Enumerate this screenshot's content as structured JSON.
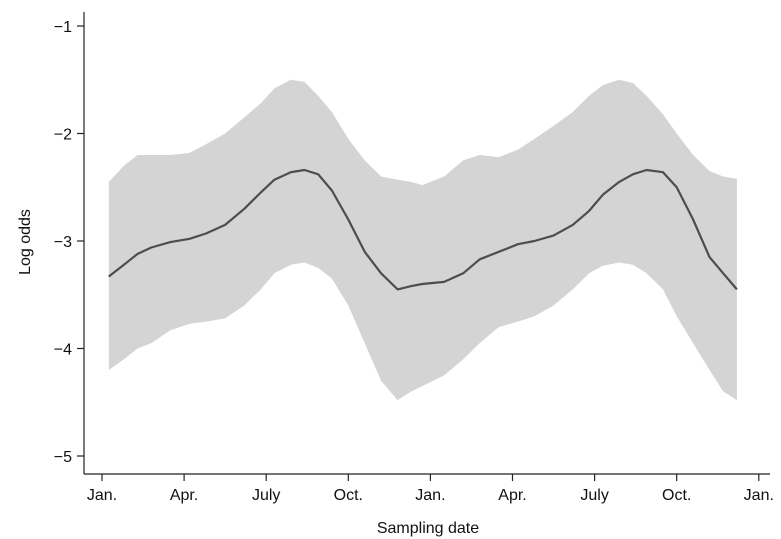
{
  "chart_data": {
    "type": "area",
    "xlabel": "Sampling date",
    "ylabel": "Log odds",
    "x_tick_labels": [
      "Jan.",
      "Apr.",
      "July",
      "Oct.",
      "Jan.",
      "Apr.",
      "July",
      "Oct.",
      "Jan."
    ],
    "y_ticks": [
      -1,
      -2,
      -3,
      -4,
      -5
    ],
    "y_tick_labels": [
      "−1",
      "−2",
      "−3",
      "−4",
      "−5"
    ],
    "ylim": [
      -5.15,
      -0.85
    ],
    "grid": false,
    "legend": "none",
    "series": [
      {
        "x_months": [
          0.25,
          0.8,
          1.3,
          1.8,
          2.5,
          3.2,
          3.8,
          4.5,
          5.2,
          5.8,
          6.3,
          6.9,
          7.4,
          7.9,
          8.4,
          9.0,
          9.6,
          10.2,
          10.8,
          11.3,
          11.7,
          12.5,
          13.2,
          13.8,
          14.5,
          15.2,
          15.8,
          16.5,
          17.2,
          17.8,
          18.3,
          18.9,
          19.4,
          19.9,
          20.5,
          21.0,
          21.6,
          22.2,
          22.7,
          23.2
        ],
        "y": [
          -3.33,
          -3.22,
          -3.12,
          -3.06,
          -3.01,
          -2.98,
          -2.93,
          -2.85,
          -2.7,
          -2.55,
          -2.43,
          -2.36,
          -2.34,
          -2.38,
          -2.53,
          -2.8,
          -3.1,
          -3.3,
          -3.45,
          -3.42,
          -3.4,
          -3.38,
          -3.3,
          -3.17,
          -3.1,
          -3.03,
          -3.0,
          -2.95,
          -2.85,
          -2.72,
          -2.57,
          -2.45,
          -2.38,
          -2.34,
          -2.36,
          -2.5,
          -2.8,
          -3.15,
          -3.3,
          -3.45
        ]
      }
    ],
    "band": {
      "x_months": [
        0.25,
        0.8,
        1.3,
        1.8,
        2.5,
        3.2,
        3.8,
        4.5,
        5.2,
        5.8,
        6.3,
        6.9,
        7.4,
        7.9,
        8.4,
        9.0,
        9.6,
        10.2,
        10.8,
        11.3,
        11.7,
        12.5,
        13.2,
        13.8,
        14.5,
        15.2,
        15.8,
        16.5,
        17.2,
        17.8,
        18.3,
        18.9,
        19.4,
        19.9,
        20.5,
        21.0,
        21.6,
        22.2,
        22.7,
        23.2
      ],
      "lower": [
        -4.2,
        -4.1,
        -4.0,
        -3.95,
        -3.83,
        -3.77,
        -3.75,
        -3.72,
        -3.6,
        -3.45,
        -3.3,
        -3.22,
        -3.2,
        -3.25,
        -3.35,
        -3.6,
        -3.95,
        -4.3,
        -4.48,
        -4.4,
        -4.35,
        -4.25,
        -4.1,
        -3.95,
        -3.8,
        -3.75,
        -3.7,
        -3.6,
        -3.45,
        -3.3,
        -3.23,
        -3.2,
        -3.22,
        -3.3,
        -3.45,
        -3.7,
        -3.95,
        -4.2,
        -4.4,
        -4.48
      ],
      "upper": [
        -2.45,
        -2.3,
        -2.2,
        -2.2,
        -2.2,
        -2.18,
        -2.1,
        -2.0,
        -1.85,
        -1.72,
        -1.58,
        -1.5,
        -1.52,
        -1.65,
        -1.8,
        -2.05,
        -2.25,
        -2.4,
        -2.43,
        -2.45,
        -2.48,
        -2.4,
        -2.25,
        -2.2,
        -2.22,
        -2.15,
        -2.05,
        -1.93,
        -1.8,
        -1.65,
        -1.55,
        -1.5,
        -1.53,
        -1.65,
        -1.82,
        -2.0,
        -2.2,
        -2.35,
        -2.4,
        -2.42
      ]
    },
    "colors": {
      "band": "#d4d4d4",
      "line": "#4d4d4d",
      "axis": "#222222"
    }
  }
}
